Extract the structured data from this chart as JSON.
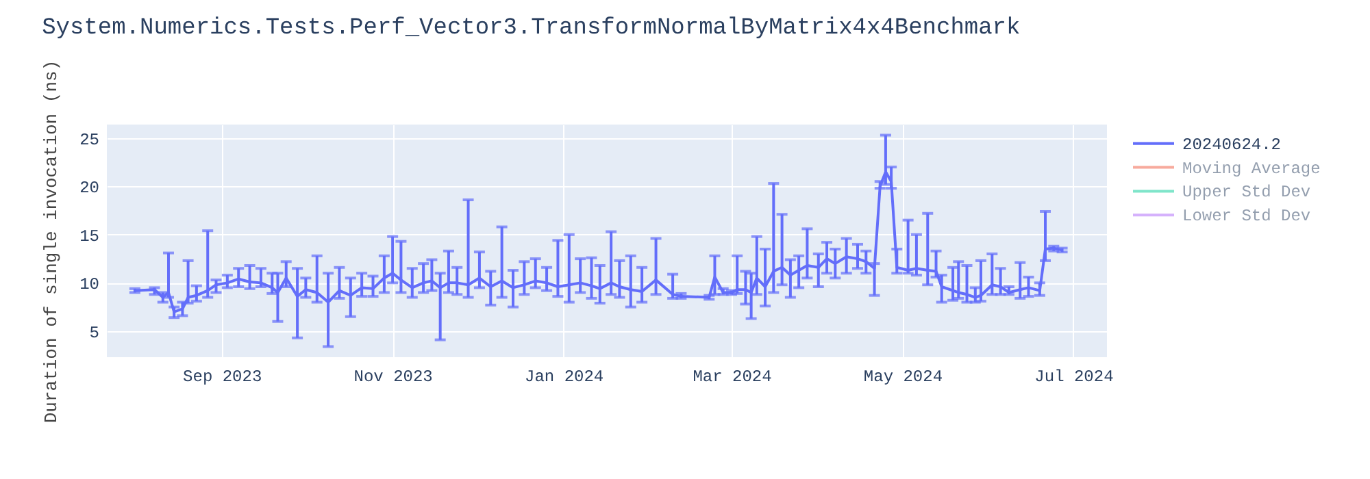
{
  "chart_data": {
    "type": "line",
    "title": "System.Numerics.Tests.Perf_Vector3.TransformNormalByMatrix4x4Benchmark",
    "ylabel": "Duration of single invocation (ns)",
    "xlim": [
      "2023-07-22",
      "2024-07-13"
    ],
    "xticks": [
      {
        "value": "2023-09-01",
        "label": "Sep 2023"
      },
      {
        "value": "2023-11-01",
        "label": "Nov 2023"
      },
      {
        "value": "2024-01-01",
        "label": "Jan 2024"
      },
      {
        "value": "2024-03-01",
        "label": "Mar 2024"
      },
      {
        "value": "2024-05-01",
        "label": "May 2024"
      },
      {
        "value": "2024-07-01",
        "label": "Jul 2024"
      }
    ],
    "ylim": [
      2.3,
      26.4
    ],
    "yticks": [
      5,
      10,
      15,
      20,
      25
    ],
    "grid": true,
    "legend": "right",
    "line_style": "solid",
    "series": [
      {
        "name": "20240624.2",
        "color": "#636efa",
        "x": [
          "2023-08-01",
          "2023-08-08",
          "2023-08-11",
          "2023-08-13",
          "2023-08-15",
          "2023-08-18",
          "2023-08-20",
          "2023-08-23",
          "2023-08-27",
          "2023-08-30",
          "2023-09-03",
          "2023-09-07",
          "2023-09-11",
          "2023-09-15",
          "2023-09-19",
          "2023-09-21",
          "2023-09-24",
          "2023-09-28",
          "2023-10-01",
          "2023-10-05",
          "2023-10-09",
          "2023-10-13",
          "2023-10-17",
          "2023-10-21",
          "2023-10-25",
          "2023-10-29",
          "2023-11-01",
          "2023-11-04",
          "2023-11-08",
          "2023-11-12",
          "2023-11-15",
          "2023-11-18",
          "2023-11-21",
          "2023-11-24",
          "2023-11-28",
          "2023-12-02",
          "2023-12-06",
          "2023-12-10",
          "2023-12-14",
          "2023-12-18",
          "2023-12-22",
          "2023-12-26",
          "2023-12-30",
          "2024-01-03",
          "2024-01-07",
          "2024-01-11",
          "2024-01-14",
          "2024-01-18",
          "2024-01-21",
          "2024-01-25",
          "2024-01-29",
          "2024-02-03",
          "2024-02-09",
          "2024-02-12",
          "2024-02-22",
          "2024-02-24",
          "2024-02-27",
          "2024-03-01",
          "2024-03-03",
          "2024-03-06",
          "2024-03-08",
          "2024-03-10",
          "2024-03-13",
          "2024-03-16",
          "2024-03-19",
          "2024-03-22",
          "2024-03-25",
          "2024-03-28",
          "2024-04-01",
          "2024-04-04",
          "2024-04-07",
          "2024-04-11",
          "2024-04-15",
          "2024-04-18",
          "2024-04-21",
          "2024-04-23",
          "2024-04-25",
          "2024-04-27",
          "2024-04-29",
          "2024-05-03",
          "2024-05-06",
          "2024-05-10",
          "2024-05-13",
          "2024-05-15",
          "2024-05-19",
          "2024-05-21",
          "2024-05-24",
          "2024-05-27",
          "2024-05-29",
          "2024-06-02",
          "2024-06-05",
          "2024-06-08",
          "2024-06-12",
          "2024-06-15",
          "2024-06-19",
          "2024-06-21",
          "2024-06-24",
          "2024-06-27"
        ],
        "values": [
          9.2,
          9.3,
          8.5,
          9.0,
          7.0,
          7.3,
          8.5,
          8.7,
          9.2,
          9.8,
          10.0,
          10.4,
          10.1,
          10.0,
          9.5,
          9.0,
          10.5,
          8.6,
          9.3,
          9.0,
          8.0,
          9.2,
          8.7,
          9.5,
          9.4,
          10.5,
          11.0,
          10.3,
          9.5,
          10.0,
          10.2,
          9.5,
          10.0,
          10.0,
          9.8,
          10.5,
          9.6,
          10.2,
          9.5,
          9.8,
          10.2,
          10.0,
          9.6,
          9.8,
          10.0,
          9.7,
          9.4,
          10.0,
          9.6,
          9.3,
          9.1,
          10.3,
          8.8,
          8.6,
          8.5,
          10.6,
          9.0,
          9.0,
          9.3,
          9.3,
          9.0,
          10.5,
          9.6,
          11.2,
          11.6,
          10.8,
          11.3,
          11.8,
          11.6,
          12.5,
          12.0,
          12.7,
          12.5,
          12.2,
          11.5,
          20.0,
          21.5,
          20.5,
          11.6,
          11.3,
          11.5,
          11.3,
          11.2,
          9.6,
          9.2,
          9.0,
          8.8,
          8.5,
          8.7,
          9.8,
          9.6,
          9.0,
          9.3,
          9.5,
          9.2,
          13.5,
          13.6,
          13.4
        ],
        "errors": [
          [
            9.0,
            9.4
          ],
          [
            8.8,
            9.5
          ],
          [
            8.0,
            9.0
          ],
          [
            8.5,
            13.1
          ],
          [
            6.4,
            7.5
          ],
          [
            6.6,
            8.0
          ],
          [
            7.9,
            12.3
          ],
          [
            8.1,
            9.7
          ],
          [
            8.5,
            15.4
          ],
          [
            9.0,
            10.3
          ],
          [
            9.5,
            10.8
          ],
          [
            9.6,
            11.5
          ],
          [
            9.4,
            11.8
          ],
          [
            9.6,
            11.5
          ],
          [
            8.9,
            11.0
          ],
          [
            6.0,
            11.0
          ],
          [
            9.6,
            12.2
          ],
          [
            4.3,
            11.5
          ],
          [
            8.5,
            10.5
          ],
          [
            8.0,
            12.8
          ],
          [
            3.4,
            11.0
          ],
          [
            8.4,
            11.6
          ],
          [
            6.5,
            10.5
          ],
          [
            8.6,
            11.0
          ],
          [
            8.6,
            10.7
          ],
          [
            9.0,
            12.8
          ],
          [
            10.0,
            14.8
          ],
          [
            9.0,
            14.3
          ],
          [
            8.5,
            11.5
          ],
          [
            9.0,
            12.0
          ],
          [
            9.2,
            12.4
          ],
          [
            4.1,
            11.0
          ],
          [
            9.0,
            13.3
          ],
          [
            8.8,
            11.6
          ],
          [
            8.5,
            18.6
          ],
          [
            9.5,
            13.2
          ],
          [
            7.7,
            11.2
          ],
          [
            8.5,
            15.8
          ],
          [
            7.5,
            11.3
          ],
          [
            8.8,
            12.2
          ],
          [
            9.5,
            12.5
          ],
          [
            9.2,
            11.6
          ],
          [
            8.6,
            14.4
          ],
          [
            8.0,
            15.0
          ],
          [
            9.0,
            12.5
          ],
          [
            8.4,
            12.6
          ],
          [
            7.9,
            11.8
          ],
          [
            8.8,
            15.3
          ],
          [
            8.5,
            12.3
          ],
          [
            7.5,
            12.8
          ],
          [
            8.0,
            11.6
          ],
          [
            8.8,
            14.6
          ],
          [
            8.4,
            10.9
          ],
          [
            8.4,
            8.9
          ],
          [
            8.3,
            8.7
          ],
          [
            8.8,
            12.8
          ],
          [
            8.8,
            9.4
          ],
          [
            8.8,
            9.2
          ],
          [
            8.9,
            12.8
          ],
          [
            7.8,
            11.2
          ],
          [
            6.3,
            11.0
          ],
          [
            8.8,
            14.8
          ],
          [
            7.6,
            13.5
          ],
          [
            9.0,
            20.3
          ],
          [
            9.8,
            17.1
          ],
          [
            8.5,
            12.4
          ],
          [
            9.5,
            12.8
          ],
          [
            10.5,
            15.6
          ],
          [
            9.6,
            13.0
          ],
          [
            11.0,
            14.2
          ],
          [
            10.5,
            13.5
          ],
          [
            11.0,
            14.6
          ],
          [
            11.5,
            14.0
          ],
          [
            11.0,
            13.3
          ],
          [
            8.7,
            12.0
          ],
          [
            19.8,
            20.5
          ],
          [
            20.2,
            25.3
          ],
          [
            19.8,
            22.0
          ],
          [
            11.0,
            13.5
          ],
          [
            11.0,
            16.5
          ],
          [
            10.8,
            15.0
          ],
          [
            9.8,
            17.2
          ],
          [
            10.6,
            13.3
          ],
          [
            8.0,
            10.8
          ],
          [
            8.2,
            11.6
          ],
          [
            8.4,
            12.2
          ],
          [
            8.0,
            11.8
          ],
          [
            8.0,
            9.5
          ],
          [
            8.1,
            12.3
          ],
          [
            8.8,
            13.0
          ],
          [
            8.8,
            11.5
          ],
          [
            8.8,
            9.6
          ],
          [
            8.4,
            12.1
          ],
          [
            8.6,
            10.6
          ],
          [
            8.7,
            10.0
          ],
          [
            12.3,
            17.4
          ],
          [
            13.3,
            13.8
          ],
          [
            13.2,
            13.6
          ]
        ]
      },
      {
        "name": "Moving Average",
        "color": "#ef553b"
      },
      {
        "name": "Upper Std Dev",
        "color": "#00cc96"
      },
      {
        "name": "Lower Std Dev",
        "color": "#ab63fa"
      }
    ]
  }
}
